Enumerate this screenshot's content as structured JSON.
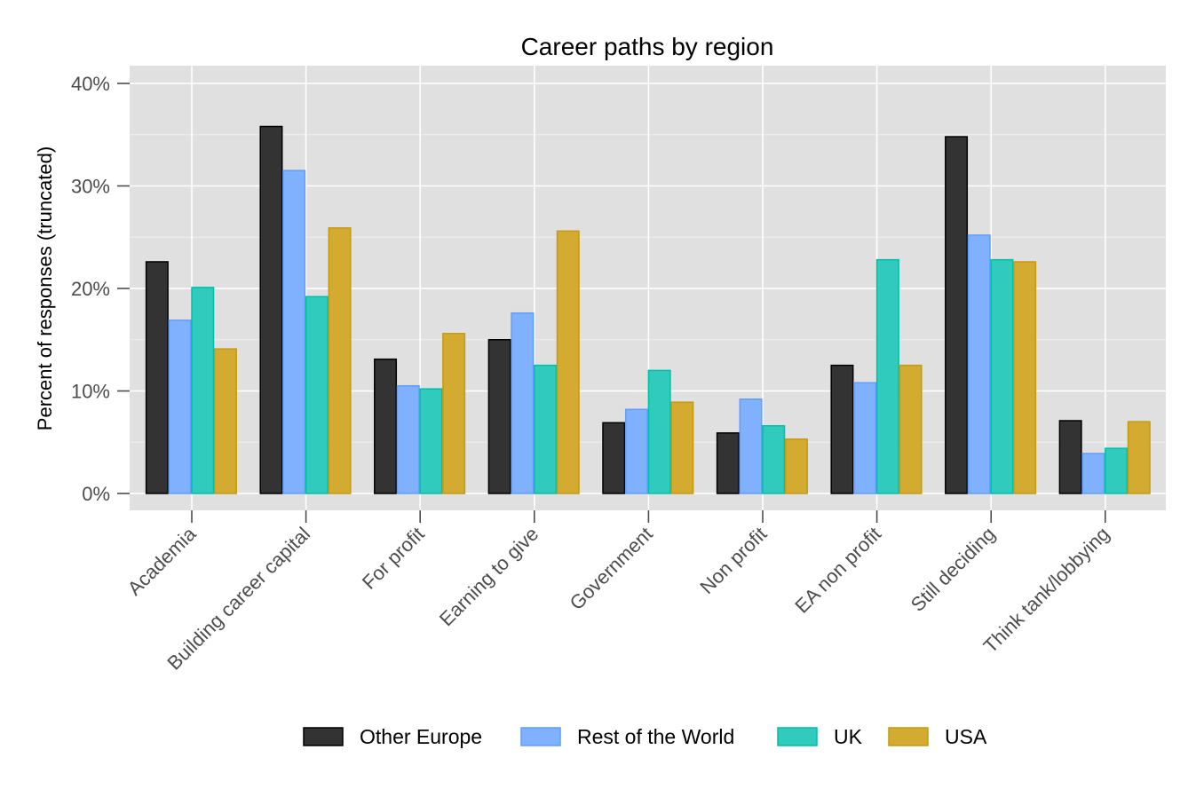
{
  "chart_data": {
    "type": "bar",
    "title": "Career paths by region",
    "xlabel": "",
    "ylabel": "Percent of responses (truncated)",
    "ylim": [
      0,
      40
    ],
    "y_ticks": [
      "0%",
      "10%",
      "20%",
      "30%",
      "40%"
    ],
    "y_tick_values": [
      0,
      10,
      20,
      30,
      40
    ],
    "grid": true,
    "legend_position": "bottom",
    "categories": [
      "Academia",
      "Building career capital",
      "For profit",
      "Earning to give",
      "Government",
      "Non profit",
      "EA non profit",
      "Still deciding",
      "Think tank/lobbying"
    ],
    "series": [
      {
        "name": "Other Europe",
        "color": "#333333",
        "edge": "#000000",
        "values": [
          22.6,
          35.8,
          13.1,
          15.0,
          6.9,
          5.9,
          12.5,
          34.8,
          7.1
        ]
      },
      {
        "name": "Rest of the World",
        "color": "#80b1ff",
        "edge": "#619cff",
        "values": [
          16.9,
          31.5,
          10.5,
          17.6,
          8.2,
          9.2,
          10.8,
          25.2,
          3.9
        ]
      },
      {
        "name": "UK",
        "color": "#30cbbd",
        "edge": "#00bfa8",
        "values": [
          20.1,
          19.2,
          10.2,
          12.5,
          12.0,
          6.6,
          22.8,
          22.8,
          4.4
        ]
      },
      {
        "name": "USA",
        "color": "#d4ab31",
        "edge": "#c49a10",
        "values": [
          14.1,
          25.9,
          15.6,
          25.6,
          8.9,
          5.3,
          12.5,
          22.6,
          7.0
        ]
      }
    ]
  }
}
